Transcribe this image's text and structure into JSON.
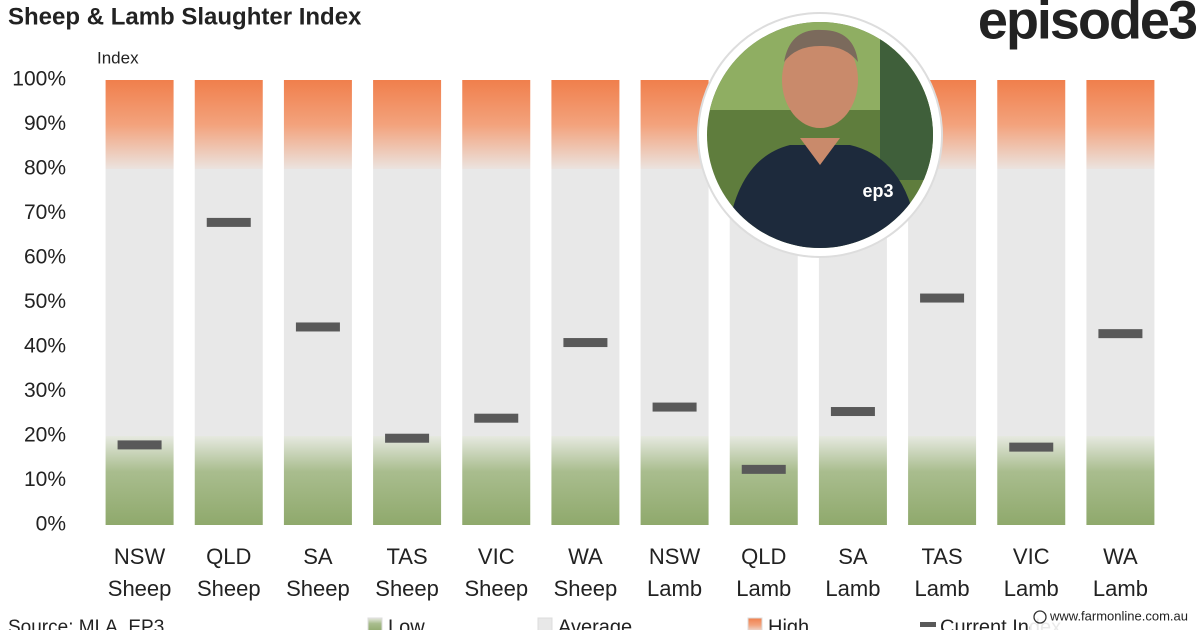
{
  "chart_data": {
    "type": "bar",
    "stacked": true,
    "title": "Sheep & Lamb Slaughter Index",
    "y_label": "Index",
    "source": "Source: MLA, EP3",
    "logo": "episode3",
    "watermark": "www.farmonline.com.au",
    "categories": [
      [
        "NSW",
        "Sheep"
      ],
      [
        "QLD",
        "Sheep"
      ],
      [
        "SA",
        "Sheep"
      ],
      [
        "TAS",
        "Sheep"
      ],
      [
        "VIC",
        "Sheep"
      ],
      [
        "WA",
        "Sheep"
      ],
      [
        "NSW",
        "Lamb"
      ],
      [
        "QLD",
        "Lamb"
      ],
      [
        "SA",
        "Lamb"
      ],
      [
        "TAS",
        "Lamb"
      ],
      [
        "VIC",
        "Lamb"
      ],
      [
        "WA",
        "Lamb"
      ]
    ],
    "series": [
      {
        "name": "Low",
        "color": "#8fa96c",
        "values": [
          20,
          20,
          20,
          20,
          20,
          20,
          20,
          20,
          20,
          20,
          20,
          20
        ]
      },
      {
        "name": "Average",
        "color": "#e8e8e8",
        "values": [
          60,
          60,
          60,
          60,
          60,
          60,
          60,
          60,
          60,
          60,
          60,
          60
        ]
      },
      {
        "name": "High",
        "color": "#f07f4c",
        "values": [
          20,
          20,
          20,
          20,
          20,
          20,
          20,
          20,
          20,
          20,
          20,
          20
        ]
      },
      {
        "name": "Current Index",
        "type": "marker",
        "color": "#595959",
        "values": [
          18,
          68,
          44.5,
          19.5,
          24,
          41,
          26.5,
          12.5,
          25.5,
          51,
          17.5,
          43
        ]
      }
    ],
    "ylim": [
      0,
      100
    ],
    "yticks": [
      {
        "value": 0,
        "label": "0%"
      },
      {
        "value": 10,
        "label": "10%"
      },
      {
        "value": 20,
        "label": "20%"
      },
      {
        "value": 30,
        "label": "30%"
      },
      {
        "value": 40,
        "label": "40%"
      },
      {
        "value": 50,
        "label": "50%"
      },
      {
        "value": 60,
        "label": "60%"
      },
      {
        "value": 70,
        "label": "70%"
      },
      {
        "value": 80,
        "label": "80%"
      },
      {
        "value": 90,
        "label": "90%"
      },
      {
        "value": 100,
        "label": "100%"
      }
    ]
  }
}
